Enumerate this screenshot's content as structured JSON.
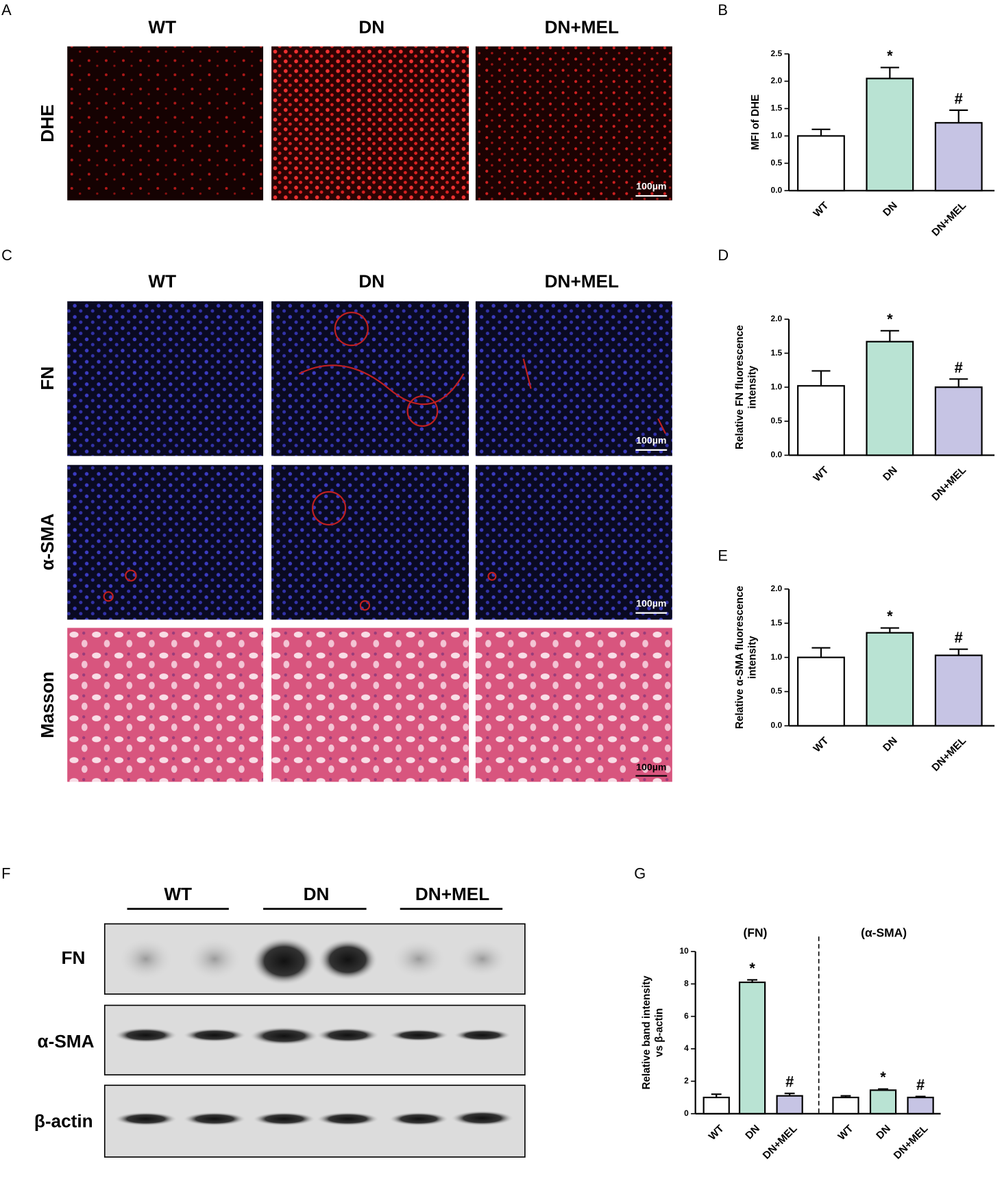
{
  "figure": {
    "panel_a": {
      "letter": "A",
      "columns": [
        "WT",
        "DN",
        "DN+MEL"
      ],
      "row": "DHE",
      "scale_bar": "100µm"
    },
    "panel_c": {
      "letter": "C",
      "columns": [
        "WT",
        "DN",
        "DN+MEL"
      ],
      "rows": [
        "FN",
        "α-SMA",
        "Masson"
      ],
      "scale_bars": [
        "100µm",
        "100µm",
        "100µm"
      ]
    },
    "panel_f": {
      "letter": "F",
      "columns": [
        "WT",
        "DN",
        "DN+MEL"
      ],
      "rows": [
        "FN",
        "α-SMA",
        "β-actin"
      ]
    }
  },
  "chart_data": [
    {
      "type": "bar",
      "panel": "B",
      "ylabel": [
        "MFI of DHE"
      ],
      "categories": [
        "WT",
        "DN",
        "DN+MEL"
      ],
      "values": [
        1.0,
        2.05,
        1.24
      ],
      "errors": [
        0.12,
        0.2,
        0.23
      ],
      "colors": [
        "#ffffff",
        "#b9e3d3",
        "#c6c4e4"
      ],
      "annotations": [
        null,
        "*",
        "#"
      ],
      "ylim": [
        0,
        2.5
      ],
      "yticks": [
        {
          "value": 0,
          "label": "0.0"
        },
        0.5,
        {
          "value": 1,
          "label": "1.0"
        },
        1.5,
        {
          "value": 2,
          "label": "2.0"
        },
        2.5
      ]
    },
    {
      "type": "bar",
      "panel": "D",
      "ylabel": [
        "Relative FN fluorescence",
        "intensity"
      ],
      "categories": [
        "WT",
        "DN",
        "DN+MEL"
      ],
      "values": [
        1.02,
        1.67,
        1.0
      ],
      "errors": [
        0.22,
        0.16,
        0.12
      ],
      "colors": [
        "#ffffff",
        "#b9e3d3",
        "#c6c4e4"
      ],
      "annotations": [
        null,
        "*",
        "#"
      ],
      "ylim": [
        0,
        2
      ],
      "yticks": [
        {
          "value": 0,
          "label": "0.0"
        },
        0.5,
        {
          "value": 1,
          "label": "1.0"
        },
        1.5,
        {
          "value": 2,
          "label": "2.0"
        }
      ]
    },
    {
      "type": "bar",
      "panel": "E",
      "ylabel": [
        "Relative α-SMA fluorescence",
        "intensity"
      ],
      "categories": [
        "WT",
        "DN",
        "DN+MEL"
      ],
      "values": [
        1.0,
        1.36,
        1.03
      ],
      "errors": [
        0.14,
        0.07,
        0.09
      ],
      "colors": [
        "#ffffff",
        "#b9e3d3",
        "#c6c4e4"
      ],
      "annotations": [
        null,
        "*",
        "#"
      ],
      "ylim": [
        0,
        2
      ],
      "yticks": [
        {
          "value": 0,
          "label": "0.0"
        },
        0.5,
        {
          "value": 1,
          "label": "1.0"
        },
        1.5,
        {
          "value": 2,
          "label": "2.0"
        }
      ]
    },
    {
      "type": "bar",
      "panel": "G",
      "ylabel": [
        "Relative band intensity",
        "vs β-actin"
      ],
      "group_labels": [
        "(FN)",
        "(α-SMA)"
      ],
      "categories": [
        "WT",
        "DN",
        "DN+MEL",
        "WT",
        "DN",
        "DN+MEL"
      ],
      "values": [
        1.0,
        8.1,
        1.1,
        1.0,
        1.45,
        1.0
      ],
      "errors": [
        0.2,
        0.15,
        0.15,
        0.1,
        0.07,
        0.06
      ],
      "colors": [
        "#ffffff",
        "#b9e3d3",
        "#c6c4e4",
        "#ffffff",
        "#b9e3d3",
        "#c6c4e4"
      ],
      "annotations": [
        null,
        "*",
        "#",
        null,
        "*",
        "#"
      ],
      "ylim": [
        0,
        10
      ],
      "yticks": [
        0,
        2,
        4,
        6,
        8,
        10
      ]
    }
  ]
}
